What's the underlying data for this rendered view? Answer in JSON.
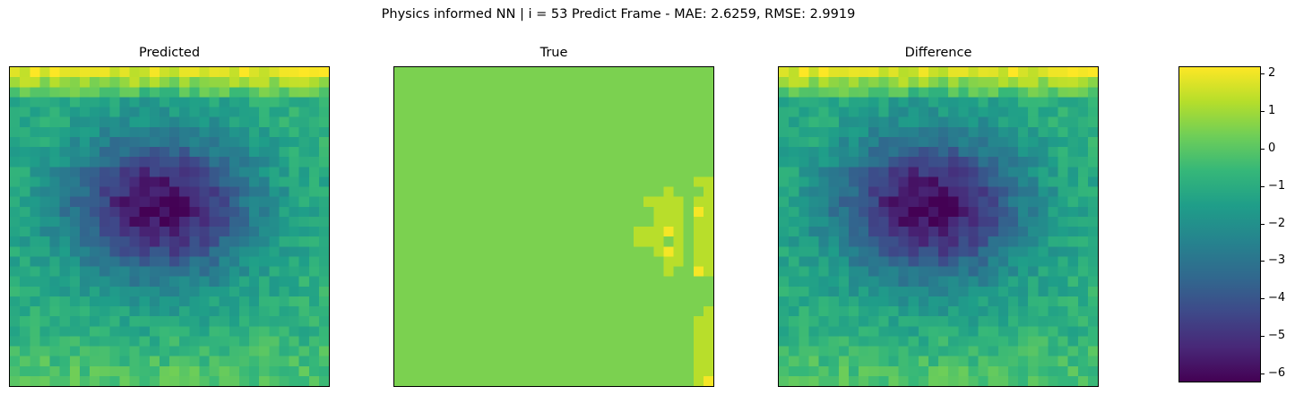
{
  "figure": {
    "suptitle": "Physics informed NN | i = 53 Predict Frame - MAE: 2.6259, RMSE: 2.9919"
  },
  "chart_data": [
    {
      "type": "heatmap",
      "title": "Predicted",
      "grid_size": [
        32,
        32
      ],
      "colormap": "viridis",
      "vmin": -6.2,
      "vmax": 2.2,
      "description_values": "noisy field: high (about 1 to 2) along the top edge, strongly negative (about -5 to -6) in a central blob, around -1 near the bottom"
    },
    {
      "type": "heatmap",
      "title": "True",
      "grid_size": [
        32,
        32
      ],
      "colormap": "viridis",
      "background_value": 0.5,
      "patches": [
        {
          "value": 1.3,
          "cells": [
            [
              12,
              27
            ],
            [
              13,
              27
            ],
            [
              14,
              27
            ],
            [
              15,
              27
            ],
            [
              16,
              27
            ],
            [
              13,
              26
            ],
            [
              14,
              26
            ],
            [
              15,
              26
            ],
            [
              16,
              26
            ],
            [
              17,
              26
            ],
            [
              18,
              26
            ],
            [
              19,
              27
            ],
            [
              20,
              27
            ],
            [
              14,
              28
            ],
            [
              15,
              28
            ],
            [
              16,
              28
            ],
            [
              17,
              28
            ],
            [
              18,
              28
            ],
            [
              19,
              28
            ],
            [
              11,
              30
            ],
            [
              13,
              30
            ],
            [
              14,
              30
            ],
            [
              15,
              30
            ],
            [
              16,
              30
            ],
            [
              17,
              30
            ],
            [
              18,
              30
            ],
            [
              19,
              30
            ],
            [
              20,
              30
            ],
            [
              25,
              30
            ],
            [
              26,
              30
            ],
            [
              27,
              30
            ],
            [
              28,
              30
            ],
            [
              29,
              30
            ],
            [
              30,
              30
            ],
            [
              28,
              31
            ],
            [
              29,
              31
            ],
            [
              30,
              31
            ],
            [
              31,
              31
            ],
            [
              17,
              25
            ],
            [
              16,
              25
            ],
            [
              16,
              24
            ],
            [
              17,
              24
            ],
            [
              13,
              25
            ],
            [
              13,
              28
            ],
            [
              11,
              31
            ],
            [
              12,
              31
            ],
            [
              13,
              31
            ],
            [
              14,
              31
            ],
            [
              15,
              31
            ],
            [
              16,
              31
            ],
            [
              17,
              31
            ],
            [
              18,
              31
            ],
            [
              19,
              31
            ],
            [
              20,
              31
            ],
            [
              24,
              31
            ],
            [
              25,
              31
            ],
            [
              26,
              31
            ],
            [
              27,
              31
            ],
            [
              28,
              30
            ],
            [
              31,
              30
            ],
            [
              18,
              31
            ],
            [
              19,
              30
            ]
          ]
        },
        {
          "value": 2.1,
          "cells": [
            [
              14,
              30
            ],
            [
              18,
              27
            ],
            [
              16,
              27
            ],
            [
              20,
              30
            ],
            [
              31,
              31
            ]
          ]
        }
      ]
    },
    {
      "type": "heatmap",
      "title": "Difference",
      "grid_size": [
        32,
        32
      ],
      "colormap": "viridis",
      "vmin": -6.2,
      "vmax": 2.2,
      "description_values": "predicted minus true; visually nearly identical to the Predicted panel"
    }
  ],
  "colorbar": {
    "min": -6.2,
    "max": 2.2,
    "ticks": [
      {
        "value": 2,
        "label": "2"
      },
      {
        "value": 1,
        "label": "1"
      },
      {
        "value": 0,
        "label": "0"
      },
      {
        "value": -1,
        "label": "−1"
      },
      {
        "value": -2,
        "label": "−2"
      },
      {
        "value": -3,
        "label": "−3"
      },
      {
        "value": -4,
        "label": "−4"
      },
      {
        "value": -5,
        "label": "−5"
      },
      {
        "value": -6,
        "label": "−6"
      }
    ]
  }
}
